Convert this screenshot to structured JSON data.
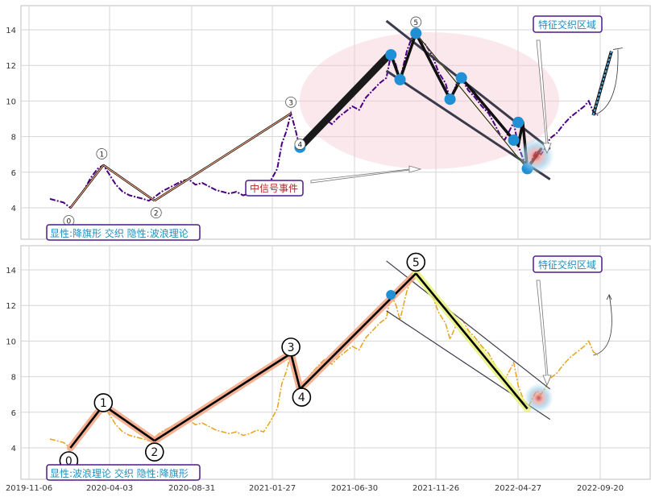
{
  "chart_data": [
    {
      "type": "line",
      "panel": "top",
      "ylim": [
        2.2,
        15.5
      ],
      "yticks": [
        4,
        6,
        8,
        10,
        12,
        14
      ],
      "grid": true,
      "series": [
        {
          "values": [
            [
              0,
              4.5
            ],
            [
              6,
              4.4
            ],
            [
              12,
              4.3
            ],
            [
              18,
              4.0
            ],
            [
              24,
              4.5
            ],
            [
              30,
              5.0
            ],
            [
              36,
              5.7
            ],
            [
              42,
              6.2
            ],
            [
              47,
              6.4
            ],
            [
              52,
              5.9
            ],
            [
              58,
              5.3
            ],
            [
              64,
              4.9
            ],
            [
              70,
              4.7
            ],
            [
              76,
              4.6
            ],
            [
              82,
              4.5
            ],
            [
              87,
              4.4
            ],
            [
              92,
              4.6
            ],
            [
              98,
              4.9
            ],
            [
              104,
              5.1
            ],
            [
              110,
              5.3
            ],
            [
              116,
              5.5
            ],
            [
              122,
              5.6
            ],
            [
              128,
              5.3
            ],
            [
              134,
              5.4
            ],
            [
              140,
              5.2
            ],
            [
              146,
              5.0
            ],
            [
              152,
              4.9
            ],
            [
              158,
              4.8
            ],
            [
              164,
              4.9
            ],
            [
              170,
              4.7
            ],
            [
              176,
              4.8
            ],
            [
              182,
              5.0
            ],
            [
              188,
              4.9
            ],
            [
              194,
              5.5
            ],
            [
              200,
              6.2
            ],
            [
              204,
              7.6
            ],
            [
              208,
              8.3
            ],
            [
              212,
              9.3
            ],
            [
              216,
              8.4
            ],
            [
              220,
              7.3
            ],
            [
              224,
              7.6
            ],
            [
              230,
              8.2
            ],
            [
              236,
              8.6
            ],
            [
              242,
              9.0
            ],
            [
              248,
              8.7
            ],
            [
              254,
              9.1
            ],
            [
              260,
              9.4
            ],
            [
              266,
              9.7
            ],
            [
              272,
              9.5
            ],
            [
              278,
              10.2
            ],
            [
              284,
              10.6
            ],
            [
              290,
              11.0
            ],
            [
              296,
              11.3
            ],
            [
              300,
              12.6
            ],
            [
              304,
              12.1
            ],
            [
              308,
              11.2
            ],
            [
              314,
              12.8
            ],
            [
              318,
              13.5
            ],
            [
              322,
              13.8
            ],
            [
              326,
              13.4
            ],
            [
              330,
              13.2
            ],
            [
              336,
              12.6
            ],
            [
              342,
              11.6
            ],
            [
              348,
              11.0
            ],
            [
              352,
              10.1
            ],
            [
              358,
              11.0
            ],
            [
              362,
              11.3
            ],
            [
              368,
              10.6
            ],
            [
              374,
              10.2
            ],
            [
              380,
              9.7
            ],
            [
              386,
              9.3
            ],
            [
              392,
              8.6
            ],
            [
              396,
              8.1
            ],
            [
              400,
              7.8
            ],
            [
              404,
              8.3
            ],
            [
              408,
              8.8
            ],
            [
              412,
              7.5
            ],
            [
              416,
              6.8
            ],
            [
              420,
              6.2
            ],
            [
              424,
              6.7
            ],
            [
              428,
              7.2
            ],
            [
              432,
              7.0
            ],
            [
              436,
              7.4
            ],
            [
              440,
              7.9
            ],
            [
              446,
              8.2
            ],
            [
              452,
              8.7
            ],
            [
              458,
              9.1
            ],
            [
              464,
              9.4
            ],
            [
              470,
              9.7
            ],
            [
              474,
              10.0
            ],
            [
              478,
              9.4
            ],
            [
              482,
              9.2
            ]
          ]
        }
      ],
      "annotations": {
        "box_label": "显性:降旗形 交织 隐性:波浪理论",
        "region_label": "特征交织区域",
        "event_label": "中信号事件",
        "wave_labels": [
          "0",
          "1",
          "2",
          "3",
          "4",
          "5"
        ]
      }
    },
    {
      "type": "line",
      "panel": "bottom",
      "ylim": [
        2.2,
        15.5
      ],
      "yticks": [
        4,
        6,
        8,
        10,
        12,
        14
      ],
      "grid": true,
      "xticks": [
        "2019-11-06",
        "2020-04-03",
        "2020-08-31",
        "2021-01-27",
        "2021-06-30",
        "2021-11-26",
        "2022-04-27",
        "2022-09-20"
      ],
      "series": [
        {
          "values": [
            [
              0,
              4.5
            ],
            [
              6,
              4.4
            ],
            [
              12,
              4.3
            ],
            [
              18,
              4.0
            ],
            [
              24,
              4.5
            ],
            [
              30,
              5.0
            ],
            [
              36,
              5.7
            ],
            [
              42,
              6.2
            ],
            [
              47,
              6.4
            ],
            [
              52,
              5.9
            ],
            [
              58,
              5.3
            ],
            [
              64,
              4.9
            ],
            [
              70,
              4.7
            ],
            [
              76,
              4.6
            ],
            [
              82,
              4.5
            ],
            [
              87,
              4.4
            ],
            [
              92,
              4.6
            ],
            [
              98,
              4.9
            ],
            [
              104,
              5.1
            ],
            [
              110,
              5.3
            ],
            [
              116,
              5.5
            ],
            [
              122,
              5.6
            ],
            [
              128,
              5.3
            ],
            [
              134,
              5.4
            ],
            [
              140,
              5.2
            ],
            [
              146,
              5.0
            ],
            [
              152,
              4.9
            ],
            [
              158,
              4.8
            ],
            [
              164,
              4.9
            ],
            [
              170,
              4.7
            ],
            [
              176,
              4.8
            ],
            [
              182,
              5.0
            ],
            [
              188,
              4.9
            ],
            [
              194,
              5.5
            ],
            [
              200,
              6.2
            ],
            [
              204,
              7.6
            ],
            [
              208,
              8.3
            ],
            [
              212,
              9.3
            ],
            [
              216,
              8.4
            ],
            [
              220,
              7.3
            ],
            [
              224,
              7.6
            ],
            [
              230,
              8.2
            ],
            [
              236,
              8.6
            ],
            [
              242,
              9.0
            ],
            [
              248,
              8.7
            ],
            [
              254,
              9.1
            ],
            [
              260,
              9.4
            ],
            [
              266,
              9.7
            ],
            [
              272,
              9.5
            ],
            [
              278,
              10.2
            ],
            [
              284,
              10.6
            ],
            [
              290,
              11.0
            ],
            [
              296,
              11.3
            ],
            [
              300,
              12.6
            ],
            [
              304,
              12.1
            ],
            [
              308,
              11.2
            ],
            [
              314,
              12.8
            ],
            [
              318,
              13.5
            ],
            [
              322,
              13.8
            ],
            [
              326,
              13.4
            ],
            [
              330,
              13.2
            ],
            [
              336,
              12.6
            ],
            [
              342,
              11.6
            ],
            [
              348,
              11.0
            ],
            [
              352,
              10.1
            ],
            [
              358,
              11.0
            ],
            [
              362,
              11.3
            ],
            [
              368,
              10.6
            ],
            [
              374,
              10.2
            ],
            [
              380,
              9.7
            ],
            [
              386,
              9.3
            ],
            [
              392,
              8.6
            ],
            [
              396,
              8.1
            ],
            [
              400,
              7.8
            ],
            [
              404,
              8.3
            ],
            [
              408,
              8.8
            ],
            [
              412,
              7.5
            ],
            [
              416,
              6.8
            ],
            [
              420,
              6.2
            ],
            [
              424,
              6.7
            ],
            [
              428,
              7.2
            ],
            [
              432,
              7.0
            ],
            [
              436,
              7.4
            ],
            [
              440,
              7.9
            ],
            [
              446,
              8.2
            ],
            [
              452,
              8.7
            ],
            [
              458,
              9.1
            ],
            [
              464,
              9.4
            ],
            [
              470,
              9.7
            ],
            [
              474,
              10.0
            ],
            [
              478,
              9.4
            ],
            [
              482,
              9.2
            ]
          ]
        }
      ],
      "annotations": {
        "box_label": "显性:波浪理论 交织 隐性:降旗形",
        "region_label": "特征交织区域",
        "wave_labels": [
          "0",
          "1",
          "2",
          "3",
          "4",
          "5"
        ]
      }
    }
  ],
  "colors": {
    "top_series": "#4b0082",
    "bottom_series": "#e8a317",
    "wave_line": "#000000",
    "wave_highlight": "#f4a582",
    "channel_line": "#3a3a4a",
    "marker": "#1f8fd6",
    "box_border": "#4b1a8c",
    "box_text": "#1f8fbf",
    "event_text": "#b02a2a",
    "ellipse_fill": "#f4cdd6",
    "grid": "#d5d5d5",
    "panel_bg": "#ffffff",
    "frame": "#bfbfbf"
  }
}
